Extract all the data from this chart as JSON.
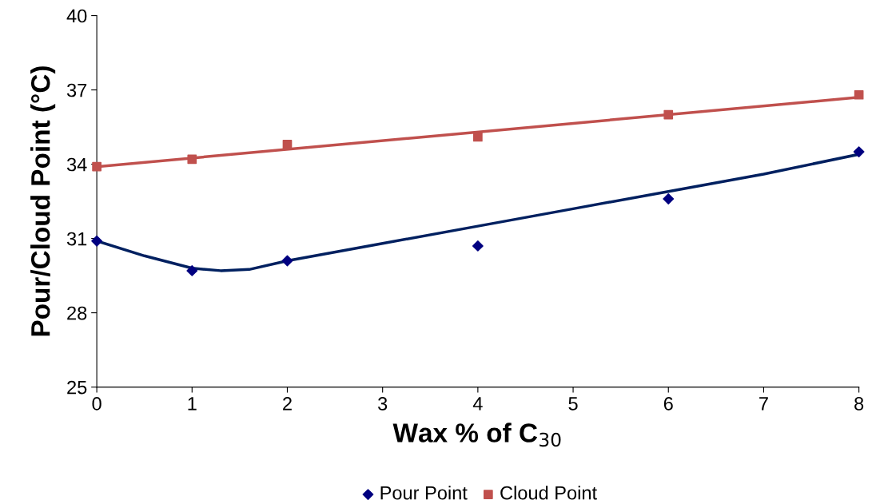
{
  "chart_data": {
    "type": "scatter",
    "xlabel": "Wax % of C$_{30}$",
    "ylabel": "Pour/Cloud Point (°C)",
    "xlim": [
      0,
      8
    ],
    "xticks": [
      0,
      1,
      2,
      3,
      4,
      5,
      6,
      7,
      8
    ],
    "ylim": [
      25,
      40
    ],
    "yticks": [
      25,
      28,
      31,
      34,
      37,
      40
    ],
    "grid": false,
    "legend": "bottom",
    "series": [
      {
        "name": "Pour Point",
        "marker": "diamond",
        "color": "#000080",
        "x": [
          0,
          1,
          2,
          4,
          6,
          8
        ],
        "values": [
          30.9,
          29.7,
          30.1,
          30.7,
          32.6,
          34.5
        ]
      },
      {
        "name": "Cloud Point",
        "marker": "square",
        "color": "#c0504d",
        "x": [
          0,
          1,
          2,
          4,
          6,
          8
        ],
        "values": [
          33.9,
          34.2,
          34.8,
          35.1,
          36.0,
          36.8
        ]
      },
      {
        "type": "line",
        "marker": "none",
        "color": "#002060",
        "x": [
          0,
          0.5,
          1,
          1.3,
          1.6,
          2,
          3,
          4,
          5,
          6,
          7,
          8
        ],
        "values": [
          30.9,
          30.3,
          29.8,
          29.7,
          29.75,
          30.1,
          30.8,
          31.5,
          32.2,
          32.9,
          33.6,
          34.4
        ]
      },
      {
        "type": "line",
        "marker": "none",
        "color": "#c0504d",
        "x": [
          0,
          8
        ],
        "values": [
          33.9,
          36.7
        ]
      }
    ]
  }
}
